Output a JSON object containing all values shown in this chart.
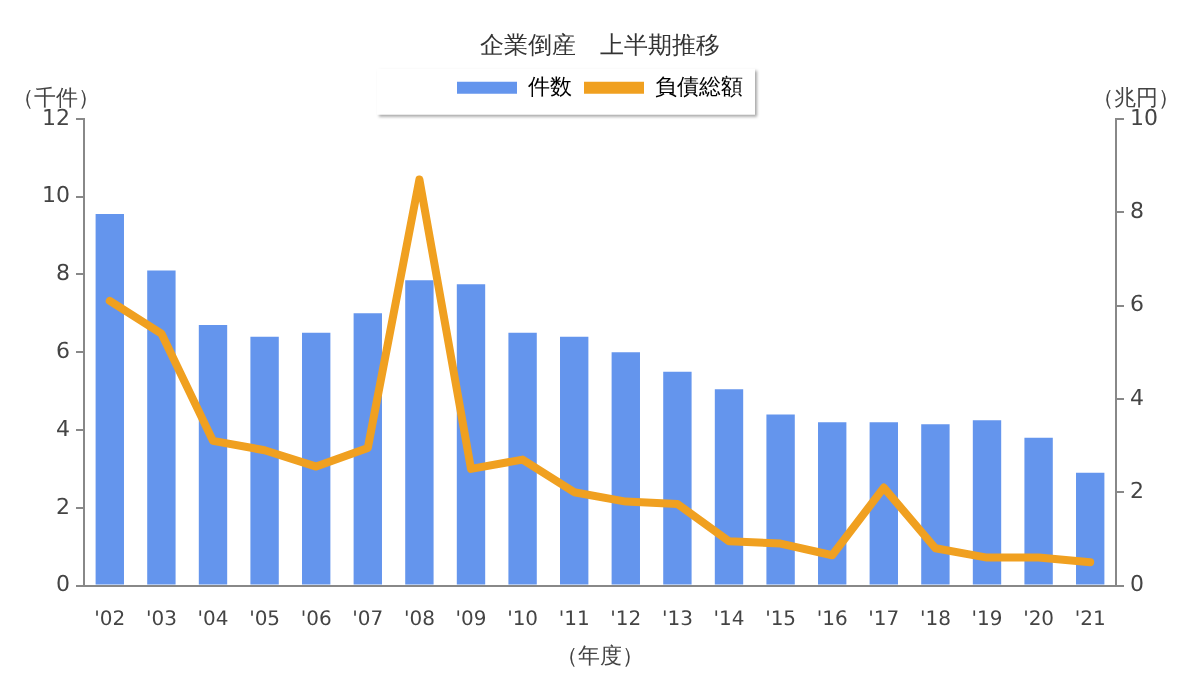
{
  "chart_data": {
    "type": "bar",
    "title": "企業倒産　上半期推移",
    "ylabel": "（千件）",
    "y2label": "（兆円）",
    "xlabel": "（年度）",
    "categories": [
      "'02",
      "'03",
      "'04",
      "'05",
      "'06",
      "'07",
      "'08",
      "'09",
      "'10",
      "'11",
      "'12",
      "'13",
      "'14",
      "'15",
      "'16",
      "'17",
      "'18",
      "'19",
      "'20",
      "'21"
    ],
    "series": [
      {
        "name": "件数",
        "color": "#6495ed",
        "values": [
          9.55,
          8.1,
          6.7,
          6.4,
          6.5,
          7.0,
          7.85,
          7.75,
          6.5,
          6.4,
          6.0,
          5.5,
          5.05,
          4.4,
          4.2,
          4.2,
          4.15,
          4.25,
          3.8,
          2.9
        ]
      },
      {
        "name": "負債総額",
        "type": "line",
        "axis": "y2",
        "color": "#f0a020",
        "values": [
          6.1,
          5.4,
          3.1,
          2.9,
          2.55,
          2.95,
          8.7,
          2.5,
          2.7,
          2.0,
          1.8,
          1.75,
          0.95,
          0.9,
          0.65,
          2.1,
          0.8,
          0.6,
          0.6,
          0.5
        ]
      }
    ],
    "ylim": [
      0,
      12
    ],
    "yticks": [
      0,
      2,
      4,
      6,
      8,
      10,
      12
    ],
    "y2lim": [
      0,
      10
    ],
    "y2ticks": [
      0,
      2,
      4,
      6,
      8,
      10
    ],
    "legend": "top",
    "grid": false,
    "marker": "none"
  }
}
